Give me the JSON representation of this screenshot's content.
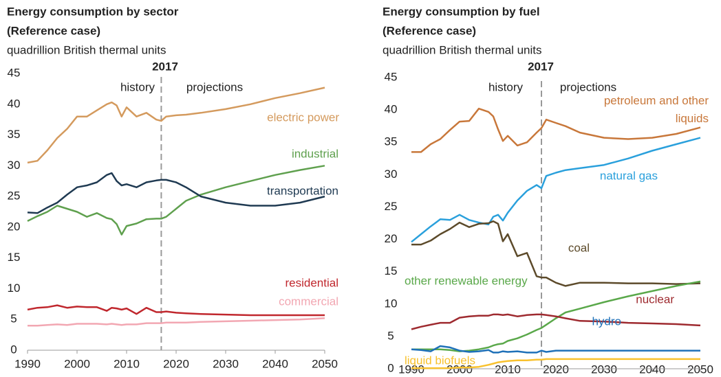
{
  "chart_data": [
    {
      "type": "line",
      "title": "Energy consumption by sector",
      "subtitle": "(Reference case)",
      "ylabel": "quadrillion British thermal units",
      "divider": 2017,
      "annotations": [
        "history",
        "projections"
      ],
      "x": [
        1990,
        1992,
        1994,
        1996,
        1998,
        2000,
        2002,
        2004,
        2006,
        2007,
        2008,
        2009,
        2010,
        2012,
        2014,
        2016,
        2017,
        2018,
        2020,
        2022,
        2025,
        2030,
        2035,
        2040,
        2045,
        2050
      ],
      "xlim": [
        1990,
        2050
      ],
      "xticks": [
        1990,
        2000,
        2010,
        2020,
        2030,
        2040,
        2050
      ],
      "ylim": [
        0,
        45
      ],
      "yticks": [
        0,
        5,
        10,
        15,
        20,
        25,
        30,
        35,
        40,
        45
      ],
      "series": [
        {
          "name": "electric power",
          "color": "#d49a5d",
          "values": [
            30.5,
            30.8,
            32.5,
            34.5,
            36,
            38,
            38,
            39,
            40,
            40.3,
            39.8,
            38,
            39.5,
            38,
            38.6,
            37.5,
            37.3,
            38,
            38.2,
            38.3,
            38.6,
            39.2,
            40,
            41,
            41.8,
            42.7
          ]
        },
        {
          "name": "industrial",
          "color": "#5fa04e",
          "values": [
            21,
            21.8,
            22.5,
            23.5,
            23,
            22.5,
            21.7,
            22.3,
            21.5,
            21.3,
            20.5,
            18.8,
            20.2,
            20.6,
            21.3,
            21.4,
            21.4,
            21.7,
            23,
            24.3,
            25.3,
            26.5,
            27.5,
            28.5,
            29.3,
            30
          ]
        },
        {
          "name": "transportation",
          "color": "#1f3a52",
          "values": [
            22.4,
            22.3,
            23.2,
            24,
            25.3,
            26.5,
            26.8,
            27.3,
            28.5,
            28.8,
            27.5,
            26.8,
            27,
            26.5,
            27.3,
            27.6,
            27.7,
            27.7,
            27.3,
            26.5,
            25,
            24,
            23.5,
            23.5,
            24,
            25
          ]
        },
        {
          "name": "residential",
          "color": "#c0272d",
          "values": [
            6.6,
            6.9,
            7,
            7.3,
            6.9,
            7.1,
            7,
            7,
            6.4,
            6.9,
            6.8,
            6.6,
            6.8,
            5.9,
            6.9,
            6.2,
            6.2,
            6.3,
            6.1,
            6,
            5.9,
            5.8,
            5.7,
            5.7,
            5.7,
            5.7
          ]
        },
        {
          "name": "commercial",
          "color": "#f2a7b2",
          "values": [
            4,
            4,
            4.1,
            4.2,
            4.1,
            4.3,
            4.3,
            4.3,
            4.2,
            4.3,
            4.2,
            4.1,
            4.2,
            4.2,
            4.4,
            4.4,
            4.4,
            4.5,
            4.5,
            4.5,
            4.6,
            4.7,
            4.8,
            4.9,
            5,
            5.2
          ]
        }
      ]
    },
    {
      "type": "line",
      "title": "Energy consumption by fuel",
      "subtitle": "(Reference case)",
      "ylabel": "quadrillion British thermal units",
      "divider": 2017,
      "annotations": [
        "history",
        "projections"
      ],
      "x": [
        1990,
        1992,
        1994,
        1996,
        1998,
        2000,
        2002,
        2004,
        2006,
        2007,
        2008,
        2009,
        2010,
        2012,
        2014,
        2016,
        2017,
        2018,
        2020,
        2022,
        2025,
        2030,
        2035,
        2040,
        2045,
        2050
      ],
      "xlim": [
        1990,
        2050
      ],
      "xticks": [
        1990,
        2000,
        2010,
        2020,
        2030,
        2040,
        2050
      ],
      "ylim": [
        0,
        45
      ],
      "yticks": [
        0,
        5,
        10,
        15,
        20,
        25,
        30,
        35,
        40,
        45
      ],
      "series": [
        {
          "name": "petroleum and other liquids",
          "color": "#c8773a",
          "values": [
            33.5,
            33.5,
            34.7,
            35.5,
            36.9,
            38.2,
            38.3,
            40.2,
            39.7,
            39,
            37,
            35.2,
            36,
            34.5,
            35,
            36.5,
            37.2,
            38.5,
            38,
            37.5,
            36.5,
            35.7,
            35.5,
            35.7,
            36.3,
            37.3
          ]
        },
        {
          "name": "natural gas",
          "color": "#2aa0dc",
          "values": [
            19.6,
            20.8,
            22,
            23.1,
            23,
            23.8,
            23,
            22.6,
            22.3,
            23.5,
            23.8,
            22.9,
            24.1,
            26,
            27.5,
            28.4,
            27.9,
            29.8,
            30.3,
            30.7,
            31,
            31.5,
            32.5,
            33.7,
            34.7,
            35.7
          ]
        },
        {
          "name": "coal",
          "color": "#5c4a2a",
          "values": [
            19.2,
            19.2,
            19.8,
            20.8,
            21.6,
            22.6,
            21.9,
            22.4,
            22.5,
            22.8,
            22.4,
            19.7,
            20.8,
            17.4,
            17.9,
            14.3,
            14.1,
            14.1,
            13.3,
            12.8,
            13.3,
            13.3,
            13.2,
            13.2,
            13.1,
            13.2
          ]
        },
        {
          "name": "other renewable energy",
          "color": "#5aa84a",
          "values": [
            3,
            3,
            3,
            3,
            2.9,
            2.7,
            2.8,
            3,
            3.3,
            3.6,
            3.8,
            3.9,
            4.3,
            4.7,
            5.3,
            6,
            6.3,
            6.8,
            7.8,
            8.7,
            9.3,
            10.3,
            11.2,
            12,
            12.8,
            13.5
          ]
        },
        {
          "name": "nuclear",
          "color": "#9e2a2f",
          "values": [
            6.1,
            6.5,
            6.8,
            7.1,
            7.1,
            7.9,
            8.1,
            8.2,
            8.2,
            8.4,
            8.4,
            8.3,
            8.4,
            8.1,
            8.3,
            8.4,
            8.4,
            8.3,
            8.1,
            7.8,
            7.4,
            7.3,
            7.1,
            7,
            6.9,
            6.7
          ]
        },
        {
          "name": "hydro",
          "color": "#1e70b8",
          "values": [
            3,
            2.9,
            2.7,
            3.5,
            3.3,
            2.8,
            2.6,
            2.7,
            2.9,
            2.5,
            2.5,
            2.7,
            2.6,
            2.7,
            2.5,
            2.5,
            2.8,
            2.6,
            2.8,
            2.8,
            2.8,
            2.8,
            2.8,
            2.8,
            2.8,
            2.8
          ]
        },
        {
          "name": "liquid biofuels",
          "color": "#f8c12d",
          "values": [
            0.1,
            0.1,
            0.1,
            0.1,
            0.1,
            0.2,
            0.2,
            0.3,
            0.6,
            0.8,
            1,
            1.1,
            1.2,
            1.3,
            1.3,
            1.4,
            1.4,
            1.5,
            1.5,
            1.5,
            1.5,
            1.5,
            1.5,
            1.5,
            1.5,
            1.5
          ]
        }
      ]
    }
  ]
}
